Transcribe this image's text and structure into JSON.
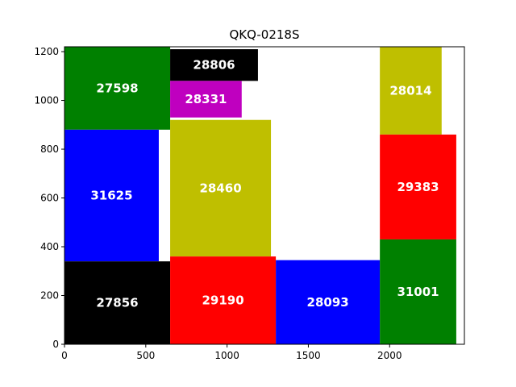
{
  "chart_data": {
    "type": "treemap",
    "title": "QKQ-0218S",
    "xlabel": "",
    "ylabel": "",
    "xlim": [
      0,
      2460
    ],
    "ylim": [
      0,
      1220
    ],
    "xticks": [
      0,
      500,
      1000,
      1500,
      2000
    ],
    "yticks": [
      0,
      200,
      400,
      600,
      800,
      1000,
      1200
    ],
    "grid": false,
    "legend": "none",
    "rects": [
      {
        "label": "27598",
        "x0": 0,
        "x1": 650,
        "y0": 880,
        "y1": 1220,
        "color": "#008000"
      },
      {
        "label": "31625",
        "x0": 0,
        "x1": 580,
        "y0": 340,
        "y1": 880,
        "color": "#0000ff"
      },
      {
        "label": "27856",
        "x0": 0,
        "x1": 650,
        "y0": 0,
        "y1": 340,
        "color": "#000000"
      },
      {
        "label": "28806",
        "x0": 650,
        "x1": 1190,
        "y0": 1080,
        "y1": 1210,
        "color": "#000000"
      },
      {
        "label": "28331",
        "x0": 650,
        "x1": 1090,
        "y0": 930,
        "y1": 1080,
        "color": "#bf00bf"
      },
      {
        "label": "28460",
        "x0": 650,
        "x1": 1270,
        "y0": 360,
        "y1": 920,
        "color": "#bfbf00"
      },
      {
        "label": "29190",
        "x0": 650,
        "x1": 1300,
        "y0": 0,
        "y1": 360,
        "color": "#ff0000"
      },
      {
        "label": "28093",
        "x0": 1300,
        "x1": 1940,
        "y0": 0,
        "y1": 345,
        "color": "#0000ff"
      },
      {
        "label": "28014",
        "x0": 1940,
        "x1": 2320,
        "y0": 860,
        "y1": 1220,
        "color": "#bfbf00"
      },
      {
        "label": "29383",
        "x0": 1940,
        "x1": 2410,
        "y0": 430,
        "y1": 860,
        "color": "#ff0000"
      },
      {
        "label": "31001",
        "x0": 1940,
        "x1": 2410,
        "y0": 0,
        "y1": 430,
        "color": "#008000"
      }
    ]
  }
}
